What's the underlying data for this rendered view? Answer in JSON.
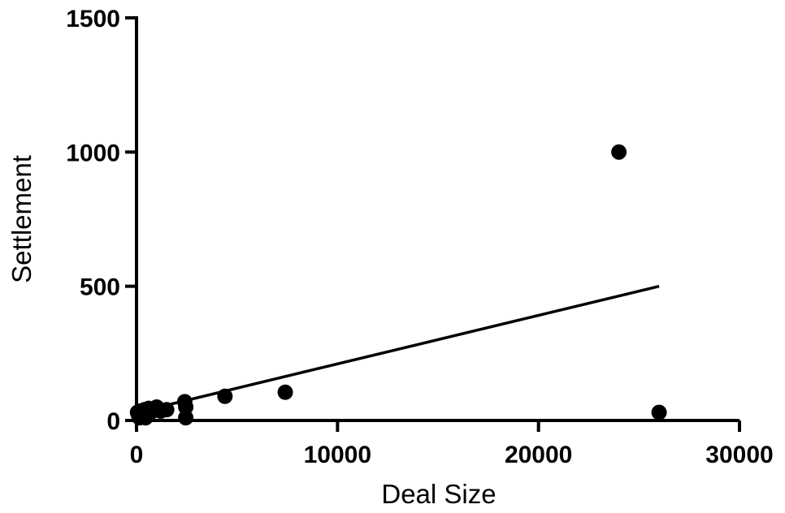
{
  "chart_data": {
    "type": "scatter",
    "title": "",
    "xlabel": "Deal Size",
    "ylabel": "Settlement",
    "xlim": [
      0,
      30000
    ],
    "ylim": [
      0,
      1500
    ],
    "xticks": [
      0,
      10000,
      20000,
      30000
    ],
    "yticks": [
      0,
      500,
      1000,
      1500
    ],
    "x_tick_labels": [
      "0",
      "10000",
      "20000",
      "30000"
    ],
    "y_tick_labels": [
      "0",
      "500",
      "1000",
      "1500"
    ],
    "grid": false,
    "legend": "none",
    "colors": {
      "points": "#000000",
      "trendline": "#000000",
      "axes": "#000000"
    },
    "series": [
      {
        "points": [
          {
            "x": 50,
            "y": 30
          },
          {
            "x": 100,
            "y": 20
          },
          {
            "x": 150,
            "y": 10
          },
          {
            "x": 200,
            "y": 35
          },
          {
            "x": 250,
            "y": 25
          },
          {
            "x": 300,
            "y": 15
          },
          {
            "x": 400,
            "y": 40
          },
          {
            "x": 450,
            "y": 10
          },
          {
            "x": 500,
            "y": 35
          },
          {
            "x": 600,
            "y": 45
          },
          {
            "x": 700,
            "y": 30
          },
          {
            "x": 900,
            "y": 40
          },
          {
            "x": 1000,
            "y": 50
          },
          {
            "x": 1200,
            "y": 35
          },
          {
            "x": 1500,
            "y": 40
          },
          {
            "x": 2400,
            "y": 70
          },
          {
            "x": 2450,
            "y": 50
          },
          {
            "x": 2450,
            "y": 10
          },
          {
            "x": 4400,
            "y": 90
          },
          {
            "x": 7400,
            "y": 105
          },
          {
            "x": 24000,
            "y": 1000
          },
          {
            "x": 26000,
            "y": 30
          }
        ]
      }
    ],
    "trendline": {
      "x": [
        0,
        26000
      ],
      "y": [
        30,
        500
      ]
    }
  }
}
